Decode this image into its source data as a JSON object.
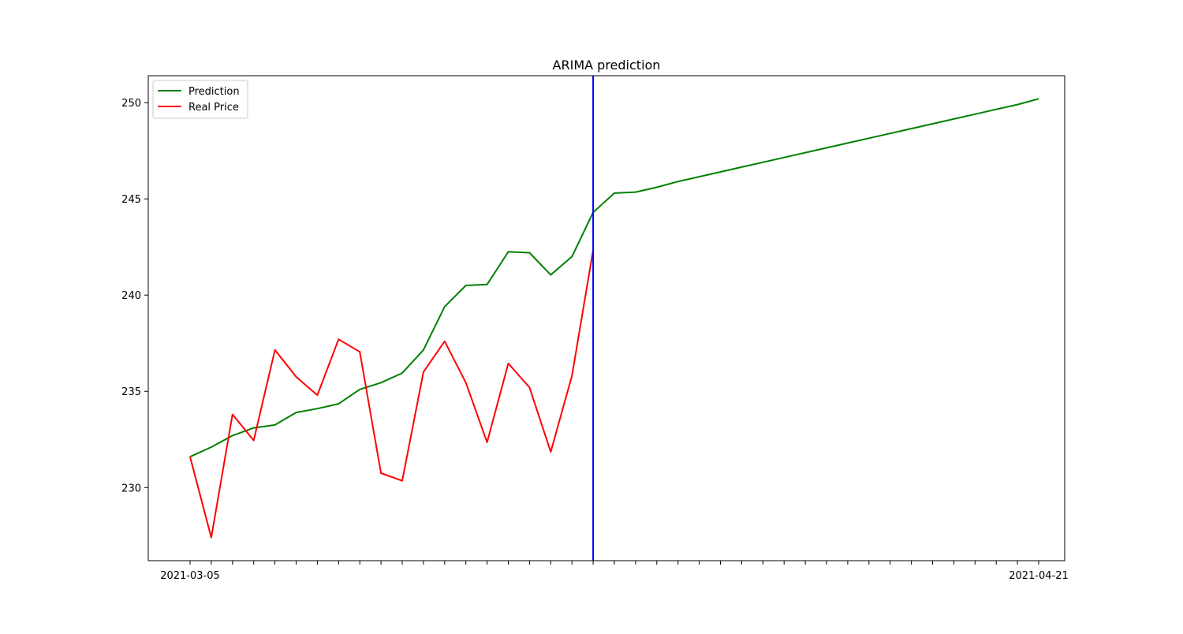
{
  "chart_data": {
    "type": "line",
    "title": "ARIMA prediction",
    "xlabel": "",
    "ylabel": "",
    "ylim": [
      226.2,
      251.4
    ],
    "yticks": [
      230,
      235,
      240,
      245,
      250
    ],
    "ytick_labels": [
      "230",
      "235",
      "240",
      "245",
      "250"
    ],
    "x_first_label": "2021-03-05",
    "x_last_label": "2021-04-21",
    "x_label_note": "tick labels overlap and are illegible except the first and last",
    "cutoff_index": 19,
    "series": [
      {
        "name": "Prediction",
        "color": "#008000",
        "values": [
          231.6,
          232.1,
          232.7,
          233.1,
          233.25,
          233.9,
          234.1,
          234.35,
          235.1,
          235.45,
          235.95,
          237.15,
          239.4,
          240.5,
          240.55,
          242.25,
          242.2,
          241.05,
          242.0,
          244.3,
          245.3,
          245.35,
          245.6,
          245.9,
          246.15,
          246.4,
          246.65,
          246.9,
          247.15,
          247.4,
          247.65,
          247.9,
          248.15,
          248.4,
          248.65,
          248.9,
          249.15,
          249.4,
          249.65,
          249.9,
          250.2
        ]
      },
      {
        "name": "Real Price",
        "color": "#ff0000",
        "values": [
          231.6,
          227.4,
          233.8,
          232.45,
          237.15,
          235.75,
          234.8,
          237.7,
          237.05,
          230.75,
          230.35,
          236.0,
          237.6,
          235.45,
          232.35,
          236.45,
          235.2,
          231.85,
          235.8,
          242.35
        ]
      }
    ],
    "vline": {
      "index": 19,
      "color": "#0000ff"
    },
    "legend": "upper-left",
    "grid": false
  }
}
